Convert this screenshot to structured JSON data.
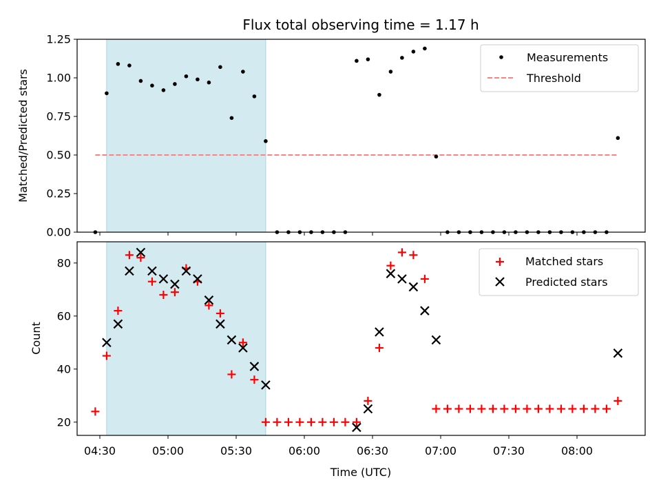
{
  "chart_data": [
    {
      "type": "scatter",
      "title": "Flux total observing time = 1.17 h",
      "xlabel": "",
      "ylabel": "Matched/Predicted stars",
      "xlim": [
        "04:20",
        "08:30"
      ],
      "ylim": [
        0.0,
        1.25
      ],
      "yticks": [
        0.0,
        0.25,
        0.5,
        0.75,
        1.0,
        1.25
      ],
      "ytick_labels": [
        "0.00",
        "0.25",
        "0.50",
        "0.75",
        "1.00",
        "1.25"
      ],
      "grid": false,
      "legend": "top-right",
      "highlight_span": {
        "x_start": "04:33",
        "x_end": "05:43",
        "color": "#d3eaf0"
      },
      "series": [
        {
          "name": "Measurements",
          "kind": "scatter",
          "color": "#000000",
          "points": [
            [
              "04:28",
              0.0
            ],
            [
              "04:33",
              0.9
            ],
            [
              "04:38",
              1.09
            ],
            [
              "04:43",
              1.08
            ],
            [
              "04:48",
              0.98
            ],
            [
              "04:53",
              0.95
            ],
            [
              "04:58",
              0.92
            ],
            [
              "05:03",
              0.96
            ],
            [
              "05:08",
              1.01
            ],
            [
              "05:13",
              0.99
            ],
            [
              "05:18",
              0.97
            ],
            [
              "05:23",
              1.07
            ],
            [
              "05:28",
              0.74
            ],
            [
              "05:33",
              1.04
            ],
            [
              "05:38",
              0.88
            ],
            [
              "05:43",
              0.59
            ],
            [
              "05:48",
              0.0
            ],
            [
              "05:53",
              0.0
            ],
            [
              "05:58",
              0.0
            ],
            [
              "06:03",
              0.0
            ],
            [
              "06:08",
              0.0
            ],
            [
              "06:13",
              0.0
            ],
            [
              "06:18",
              0.0
            ],
            [
              "06:23",
              1.11
            ],
            [
              "06:28",
              1.12
            ],
            [
              "06:33",
              0.89
            ],
            [
              "06:38",
              1.04
            ],
            [
              "06:43",
              1.13
            ],
            [
              "06:48",
              1.17
            ],
            [
              "06:53",
              1.19
            ],
            [
              "06:58",
              0.49
            ],
            [
              "07:03",
              0.0
            ],
            [
              "07:08",
              0.0
            ],
            [
              "07:13",
              0.0
            ],
            [
              "07:18",
              0.0
            ],
            [
              "07:23",
              0.0
            ],
            [
              "07:28",
              0.0
            ],
            [
              "07:33",
              0.0
            ],
            [
              "07:38",
              0.0
            ],
            [
              "07:43",
              0.0
            ],
            [
              "07:48",
              0.0
            ],
            [
              "07:53",
              0.0
            ],
            [
              "07:58",
              0.0
            ],
            [
              "08:03",
              0.0
            ],
            [
              "08:08",
              0.0
            ],
            [
              "08:13",
              0.0
            ],
            [
              "08:18",
              0.61
            ]
          ]
        },
        {
          "name": "Threshold",
          "kind": "line",
          "color": "#ff8080",
          "dashed": true,
          "points": [
            [
              "04:28",
              0.5
            ],
            [
              "08:18",
              0.5
            ]
          ]
        }
      ]
    },
    {
      "type": "scatter",
      "title": "",
      "xlabel": "Time (UTC)",
      "ylabel": "Count",
      "xlim": [
        "04:20",
        "08:30"
      ],
      "ylim": [
        15,
        88
      ],
      "yticks": [
        20,
        40,
        60,
        80
      ],
      "ytick_labels": [
        "20",
        "40",
        "60",
        "80"
      ],
      "xticks": [
        "04:30",
        "05:00",
        "05:30",
        "06:00",
        "06:30",
        "07:00",
        "07:30",
        "08:00"
      ],
      "grid": false,
      "legend": "top-right",
      "highlight_span": {
        "x_start": "04:33",
        "x_end": "05:43",
        "color": "#d3eaf0"
      },
      "series": [
        {
          "name": "Matched stars",
          "kind": "scatter",
          "marker": "plus",
          "color": "#ff0000",
          "points": [
            [
              "04:28",
              24
            ],
            [
              "04:33",
              45
            ],
            [
              "04:38",
              62
            ],
            [
              "04:43",
              83
            ],
            [
              "04:48",
              82
            ],
            [
              "04:53",
              73
            ],
            [
              "04:58",
              68
            ],
            [
              "05:03",
              69
            ],
            [
              "05:08",
              78
            ],
            [
              "05:13",
              73
            ],
            [
              "05:18",
              64
            ],
            [
              "05:23",
              61
            ],
            [
              "05:28",
              38
            ],
            [
              "05:33",
              50
            ],
            [
              "05:38",
              36
            ],
            [
              "05:43",
              20
            ],
            [
              "05:48",
              20
            ],
            [
              "05:53",
              20
            ],
            [
              "05:58",
              20
            ],
            [
              "06:03",
              20
            ],
            [
              "06:08",
              20
            ],
            [
              "06:13",
              20
            ],
            [
              "06:18",
              20
            ],
            [
              "06:23",
              20
            ],
            [
              "06:28",
              28
            ],
            [
              "06:33",
              48
            ],
            [
              "06:38",
              79
            ],
            [
              "06:43",
              84
            ],
            [
              "06:48",
              83
            ],
            [
              "06:53",
              74
            ],
            [
              "06:58",
              25
            ],
            [
              "07:03",
              25
            ],
            [
              "07:08",
              25
            ],
            [
              "07:13",
              25
            ],
            [
              "07:18",
              25
            ],
            [
              "07:23",
              25
            ],
            [
              "07:28",
              25
            ],
            [
              "07:33",
              25
            ],
            [
              "07:38",
              25
            ],
            [
              "07:43",
              25
            ],
            [
              "07:48",
              25
            ],
            [
              "07:53",
              25
            ],
            [
              "07:58",
              25
            ],
            [
              "08:03",
              25
            ],
            [
              "08:08",
              25
            ],
            [
              "08:13",
              25
            ],
            [
              "08:18",
              28
            ]
          ]
        },
        {
          "name": "Predicted stars",
          "kind": "scatter",
          "marker": "x",
          "color": "#000000",
          "points": [
            [
              "04:33",
              50
            ],
            [
              "04:38",
              57
            ],
            [
              "04:43",
              77
            ],
            [
              "04:48",
              84
            ],
            [
              "04:53",
              77
            ],
            [
              "04:58",
              74
            ],
            [
              "05:03",
              72
            ],
            [
              "05:08",
              77
            ],
            [
              "05:13",
              74
            ],
            [
              "05:18",
              66
            ],
            [
              "05:23",
              57
            ],
            [
              "05:28",
              51
            ],
            [
              "05:33",
              48
            ],
            [
              "05:38",
              41
            ],
            [
              "05:43",
              34
            ],
            [
              "06:23",
              18
            ],
            [
              "06:28",
              25
            ],
            [
              "06:33",
              54
            ],
            [
              "06:38",
              76
            ],
            [
              "06:43",
              74
            ],
            [
              "06:48",
              71
            ],
            [
              "06:53",
              62
            ],
            [
              "06:58",
              51
            ],
            [
              "08:18",
              46
            ]
          ]
        }
      ]
    }
  ]
}
